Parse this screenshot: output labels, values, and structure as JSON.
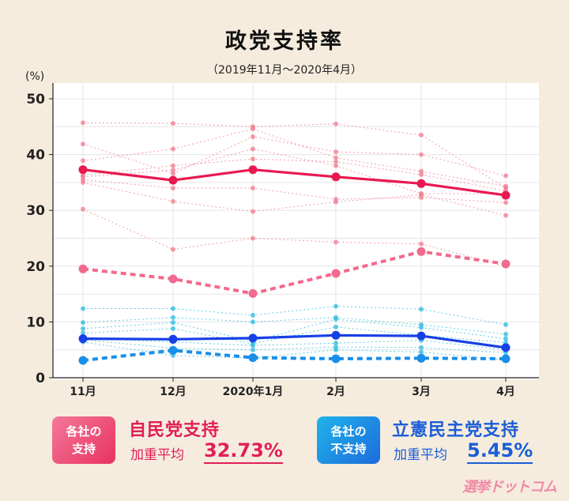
{
  "title": "政党支持率",
  "subtitle": "（2019年11月～2020年4月）",
  "legend_ldp": {
    "box_line1": "各社の",
    "box_line2": "支持",
    "title": "自民党支持",
    "avg_label": "加重平均",
    "avg_value": "32.73%"
  },
  "legend_cdp": {
    "box_line1": "各社の",
    "box_line2": "不支持",
    "title": "立憲民主党支持",
    "avg_label": "加重平均",
    "avg_value": "5.45%"
  },
  "logo_text": "選挙ドットコム",
  "colors": {
    "ldp_main": "#e8194f",
    "ldp_thin": "#f1798e",
    "ldp_dash": "#f26a8d",
    "cdp_main": "#1740e6",
    "cdp_thin": "#35bfe0",
    "cdp_dash": "#1a8ee8",
    "grid": "#e5e5e5",
    "plot_bg": "#ffffff"
  },
  "chart_data": {
    "type": "line",
    "categories": [
      "11月",
      "12月",
      "2020年1月",
      "2月",
      "3月",
      "4月"
    ],
    "yunit": "(%)",
    "ylim": [
      0,
      50
    ],
    "yticks": [
      0,
      10,
      20,
      30,
      40,
      50
    ],
    "grid": true,
    "series": [
      {
        "name": "自民党支持 加重平均",
        "style": "ldp_main",
        "values": [
          37.3,
          35.4,
          37.3,
          36.0,
          34.8,
          32.7
        ]
      },
      {
        "name": "自民党 不支持 加重平均",
        "style": "ldp_dash",
        "values": [
          19.5,
          17.7,
          15.1,
          18.7,
          22.6,
          20.4
        ]
      },
      {
        "name": "立憲民主党支持 加重平均",
        "style": "cdp_main",
        "values": [
          7.0,
          6.9,
          7.1,
          7.6,
          7.5,
          5.4
        ]
      },
      {
        "name": "立憲民主党 不支持 加重平均",
        "style": "cdp_dash",
        "values": [
          3.1,
          4.9,
          3.6,
          3.4,
          3.5,
          3.4
        ]
      },
      {
        "name": "自民党 各社1",
        "style": "ldp_thin",
        "values": [
          45.7,
          45.6,
          45.0,
          45.5,
          43.5,
          34.0
        ]
      },
      {
        "name": "自民党 各社2",
        "style": "ldp_thin",
        "values": [
          41.9,
          36.6,
          43.2,
          40.5,
          40.0,
          36.2
        ]
      },
      {
        "name": "自民党 各社3",
        "style": "ldp_thin",
        "values": [
          38.9,
          41.0,
          44.6,
          39.4,
          37.0,
          34.3
        ]
      },
      {
        "name": "自民党 各社4",
        "style": "ldp_thin",
        "values": [
          36.3,
          38.0,
          39.2,
          38.7,
          36.4,
          33.5
        ]
      },
      {
        "name": "自民党 各社5",
        "style": "ldp_thin",
        "values": [
          36.0,
          37.2,
          41.0,
          38.0,
          33.0,
          33.0
        ]
      },
      {
        "name": "自民党 各社6",
        "style": "ldp_thin",
        "values": [
          35.5,
          34.0,
          34.0,
          32.0,
          32.3,
          31.4
        ]
      },
      {
        "name": "自民党 各社7",
        "style": "ldp_thin",
        "values": [
          35.0,
          31.6,
          29.8,
          31.5,
          32.8,
          29.1
        ]
      },
      {
        "name": "自民党 各社8",
        "style": "ldp_thin",
        "values": [
          30.2,
          23.0,
          25.0,
          24.3,
          24.0,
          20.0
        ]
      },
      {
        "name": "立憲民主党 各社1",
        "style": "cdp_thin",
        "values": [
          12.4,
          12.4,
          11.2,
          12.8,
          12.3,
          9.5
        ]
      },
      {
        "name": "立憲民主党 各社2",
        "style": "cdp_thin",
        "values": [
          9.9,
          10.8,
          10.0,
          10.8,
          9.5,
          7.8
        ]
      },
      {
        "name": "立憲民主党 各社3",
        "style": "cdp_thin",
        "values": [
          8.8,
          9.9,
          6.5,
          10.5,
          9.0,
          7.0
        ]
      },
      {
        "name": "立憲民主党 各社4",
        "style": "cdp_thin",
        "values": [
          8.0,
          8.8,
          6.1,
          9.1,
          7.6,
          6.3
        ]
      },
      {
        "name": "立憲民主党 各社5",
        "style": "cdp_thin",
        "values": [
          7.1,
          6.4,
          5.8,
          6.2,
          6.7,
          5.0
        ]
      },
      {
        "name": "立憲民主党 各社6",
        "style": "cdp_thin",
        "values": [
          6.8,
          5.3,
          5.0,
          5.5,
          5.4,
          4.5
        ]
      },
      {
        "name": "立憲民主党 各社7",
        "style": "cdp_thin",
        "values": [
          6.4,
          4.0,
          3.5,
          5.0,
          4.6,
          3.2
        ]
      }
    ]
  }
}
